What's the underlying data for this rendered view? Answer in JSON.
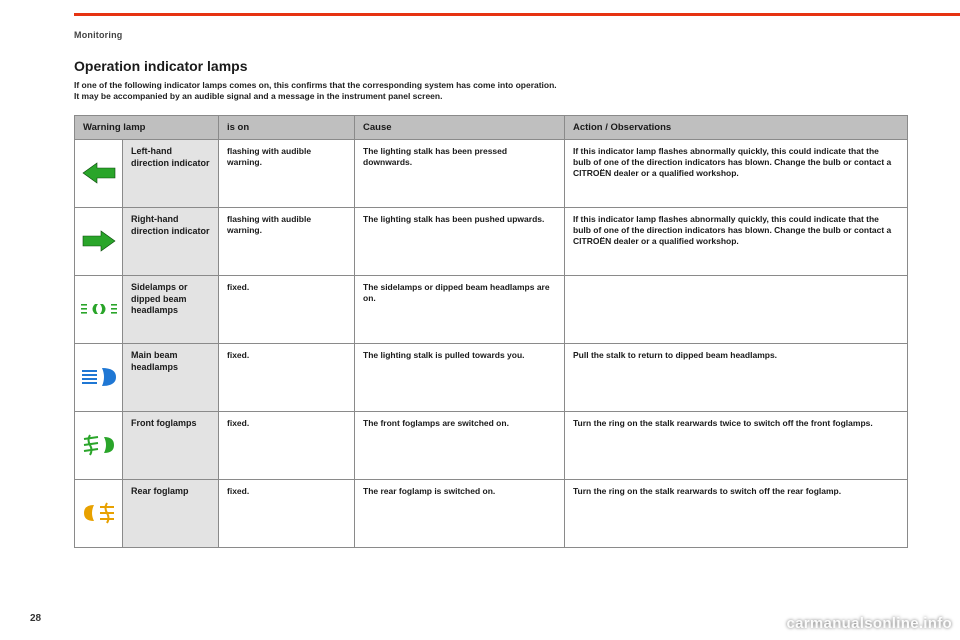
{
  "section_label": "Monitoring",
  "page_number": "28",
  "watermark": "carmanualsonline.info",
  "title": "Operation indicator lamps",
  "intro_line1": "If one of the following indicator lamps comes on, this confirms that the corresponding system has come into operation.",
  "intro_line2": "It may be accompanied by an audible signal and a message in the instrument panel screen.",
  "headers": {
    "warning_lamp": "Warning lamp",
    "is_on": "is on",
    "cause": "Cause",
    "action": "Action / Observations"
  },
  "rows": [
    {
      "icon": "arrow-left",
      "icon_color": "#2aa52a",
      "name": "Left-hand direction indicator",
      "is_on": "flashing with audible warning.",
      "cause": "The lighting stalk has been pressed downwards.",
      "action": "If this indicator lamp flashes abnormally quickly, this could indicate that the bulb of one of the direction indicators has blown. Change the bulb or contact a CITROËN dealer or a qualified workshop."
    },
    {
      "icon": "arrow-right",
      "icon_color": "#2aa52a",
      "name": "Right-hand direction indicator",
      "is_on": "flashing with audible warning.",
      "cause": "The lighting stalk has been pushed upwards.",
      "action": "If this indicator lamp flashes abnormally quickly, this could indicate that the bulb of one of the direction indicators has blown. Change the bulb or contact a CITROËN dealer or a qualified workshop."
    },
    {
      "icon": "sidelamps",
      "icon_color": "#2aa52a",
      "name": "Sidelamps or dipped beam headlamps",
      "is_on": "fixed.",
      "cause": "The sidelamps or dipped beam headlamps are on.",
      "action": ""
    },
    {
      "icon": "main-beam",
      "icon_color": "#1f77d4",
      "name": "Main beam headlamps",
      "is_on": "fixed.",
      "cause": "The lighting stalk is pulled towards you.",
      "action": "Pull the stalk to return to dipped beam headlamps."
    },
    {
      "icon": "front-fog",
      "icon_color": "#2aa52a",
      "name": "Front foglamps",
      "is_on": "fixed.",
      "cause": "The front foglamps are switched on.",
      "action": "Turn the ring on the stalk rearwards twice to switch off the front foglamps."
    },
    {
      "icon": "rear-fog",
      "icon_color": "#e8a100",
      "name": "Rear foglamp",
      "is_on": "fixed.",
      "cause": "The rear foglamp is switched on.",
      "action": "Turn the ring on the stalk rearwards to switch off the rear foglamp."
    }
  ]
}
